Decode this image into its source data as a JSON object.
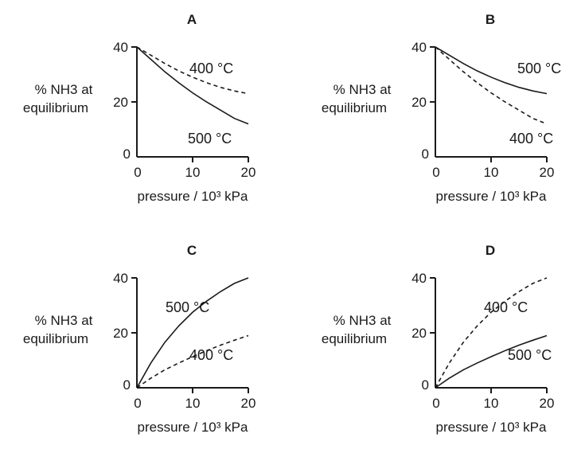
{
  "chart_data": [
    {
      "panel_label": "A",
      "type": "line",
      "ylabel_line1": "% NH3 at",
      "ylabel_line2": "equilibrium",
      "xlabel": "pressure / 10³ kPa",
      "xlim": [
        0,
        20
      ],
      "ylim": [
        0,
        40
      ],
      "x_ticks": [
        "0",
        "10",
        "20"
      ],
      "y_ticks": [
        "0",
        "20",
        "40"
      ],
      "grid": false,
      "series": [
        {
          "name": "400 °C",
          "style": "dashed",
          "x": [
            0,
            2.5,
            5,
            7.5,
            10,
            12.5,
            15,
            17.5,
            20
          ],
          "values": [
            40,
            37,
            34,
            31.3,
            29,
            27,
            25.3,
            24,
            23
          ]
        },
        {
          "name": "500 °C",
          "style": "solid",
          "x": [
            0,
            2.5,
            5,
            7.5,
            10,
            12.5,
            15,
            17.5,
            20
          ],
          "values": [
            40,
            35.5,
            31,
            27,
            23.3,
            20,
            17,
            14,
            12
          ]
        }
      ]
    },
    {
      "panel_label": "B",
      "type": "line",
      "ylabel_line1": "% NH3 at",
      "ylabel_line2": "equilibrium",
      "xlabel": "pressure / 10³ kPa",
      "xlim": [
        0,
        20
      ],
      "ylim": [
        0,
        40
      ],
      "x_ticks": [
        "0",
        "10",
        "20"
      ],
      "y_ticks": [
        "0",
        "20",
        "40"
      ],
      "grid": false,
      "series": [
        {
          "name": "500 °C",
          "style": "solid",
          "x": [
            0,
            2.5,
            5,
            7.5,
            10,
            12.5,
            15,
            17.5,
            20
          ],
          "values": [
            40,
            37,
            34,
            31.3,
            29,
            27,
            25.3,
            24,
            23
          ]
        },
        {
          "name": "400 °C",
          "style": "dashed",
          "x": [
            0,
            2.5,
            5,
            7.5,
            10,
            12.5,
            15,
            17.5,
            20
          ],
          "values": [
            40,
            35.5,
            31,
            27,
            23.3,
            20,
            17,
            14,
            12
          ]
        }
      ]
    },
    {
      "panel_label": "C",
      "type": "line",
      "ylabel_line1": "% NH3 at",
      "ylabel_line2": "equilibrium",
      "xlabel": "pressure / 10³ kPa",
      "xlim": [
        0,
        20
      ],
      "ylim": [
        0,
        40
      ],
      "x_ticks": [
        "0",
        "10",
        "20"
      ],
      "y_ticks": [
        "0",
        "20",
        "40"
      ],
      "grid": false,
      "series": [
        {
          "name": "500 °C",
          "style": "solid",
          "x": [
            0,
            2.5,
            5,
            7.5,
            10,
            12.5,
            15,
            17.5,
            20
          ],
          "values": [
            0,
            9,
            16.5,
            22.5,
            27.5,
            31.5,
            35,
            38,
            40
          ]
        },
        {
          "name": "400 °C",
          "style": "dashed",
          "x": [
            0,
            2.5,
            5,
            7.5,
            10,
            12.5,
            15,
            17.5,
            20
          ],
          "values": [
            0,
            3.5,
            6.5,
            9,
            11.3,
            13.5,
            15.5,
            17.3,
            19
          ]
        }
      ]
    },
    {
      "panel_label": "D",
      "type": "line",
      "ylabel_line1": "% NH3 at",
      "ylabel_line2": "equilibrium",
      "xlabel": "pressure / 10³ kPa",
      "xlim": [
        0,
        20
      ],
      "ylim": [
        0,
        40
      ],
      "x_ticks": [
        "0",
        "10",
        "20"
      ],
      "y_ticks": [
        "0",
        "20",
        "40"
      ],
      "grid": false,
      "series": [
        {
          "name": "400 °C",
          "style": "dashed",
          "x": [
            0,
            2.5,
            5,
            7.5,
            10,
            12.5,
            15,
            17.5,
            20
          ],
          "values": [
            0,
            9,
            16.5,
            22.5,
            27.5,
            31.5,
            35,
            38,
            40
          ]
        },
        {
          "name": "500 °C",
          "style": "solid",
          "x": [
            0,
            2.5,
            5,
            7.5,
            10,
            12.5,
            15,
            17.5,
            20
          ],
          "values": [
            0,
            3.5,
            6.5,
            9,
            11.3,
            13.5,
            15.5,
            17.3,
            19
          ]
        }
      ]
    }
  ]
}
